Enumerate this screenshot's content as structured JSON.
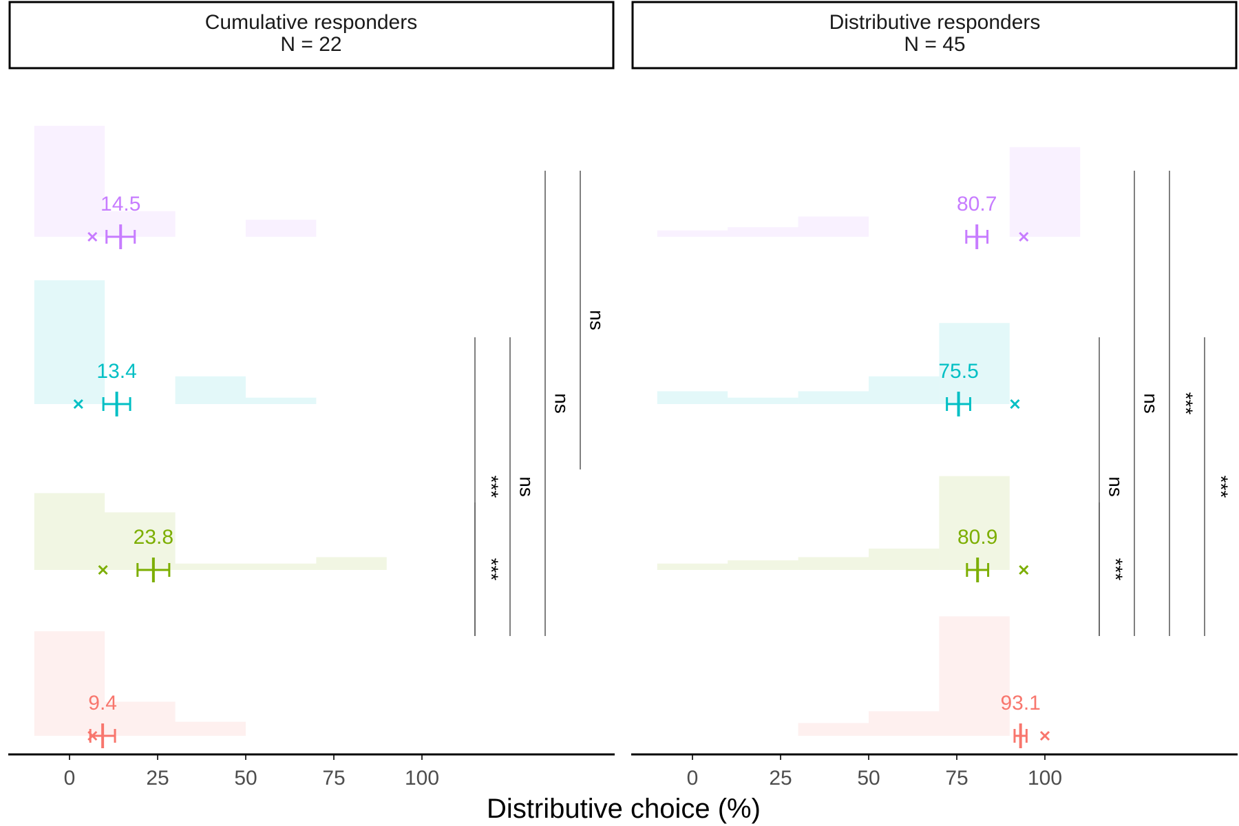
{
  "chart_data": {
    "type": "histogram-with-means",
    "xlabel": "Distributive choice (%)",
    "xticks": [
      "0",
      "25",
      "50",
      "75",
      "100"
    ],
    "xlim": [
      -10.5,
      132
    ],
    "bin_width": 20,
    "bin_centers": [
      0,
      20,
      40,
      60,
      80,
      100
    ],
    "grid": false,
    "conditions": [
      {
        "key": "purple",
        "color": "#C77CFF"
      },
      {
        "key": "cyan",
        "color": "#00BFC4"
      },
      {
        "key": "green",
        "color": "#7CAE00"
      },
      {
        "key": "red",
        "color": "#F8766D"
      }
    ],
    "panels": [
      {
        "strip_line1": "Cumulative responders",
        "strip_line2": "N = 22",
        "groups": [
          {
            "key": "purple",
            "mean_label": "14.5",
            "mean": 14.5,
            "se": 4.0,
            "median": 6.5,
            "bin_heights": [
              0.52,
              0.12,
              0,
              0.08,
              0,
              0
            ]
          },
          {
            "key": "cyan",
            "mean_label": "13.4",
            "mean": 13.4,
            "se": 3.8,
            "median": 2.5,
            "bin_heights": [
              0.58,
              0,
              0.13,
              0.03,
              0,
              0
            ]
          },
          {
            "key": "green",
            "mean_label": "23.8",
            "mean": 23.8,
            "se": 4.5,
            "median": 9.5,
            "bin_heights": [
              0.36,
              0.27,
              0.03,
              0.03,
              0.06,
              0
            ]
          },
          {
            "key": "red",
            "mean_label": "9.4",
            "mean": 9.4,
            "se": 3.5,
            "median": 6.5,
            "bin_heights": [
              0.49,
              0.16,
              0.066,
              0,
              0,
              0
            ]
          }
        ],
        "comparisons": [
          {
            "from": "purple",
            "to": "cyan",
            "label": "ns"
          },
          {
            "from": "purple",
            "to": "red",
            "label": "ns"
          },
          {
            "from": "cyan",
            "to": "red",
            "label": "ns"
          },
          {
            "from": "cyan",
            "to": "green",
            "label": "***"
          },
          {
            "from": "green",
            "to": "red",
            "label": "***"
          }
        ]
      },
      {
        "strip_line1": "Distributive responders",
        "strip_line2": "N = 45",
        "groups": [
          {
            "key": "purple",
            "mean_label": "80.7",
            "mean": 80.7,
            "se": 3.0,
            "median": 94,
            "bin_heights": [
              0.03,
              0.045,
              0.095,
              0,
              0,
              0.42
            ]
          },
          {
            "key": "cyan",
            "mean_label": "75.5",
            "mean": 75.5,
            "se": 3.3,
            "median": 91.5,
            "bin_heights": [
              0.06,
              0.03,
              0.06,
              0.13,
              0.38,
              0
            ]
          },
          {
            "key": "green",
            "mean_label": "80.9",
            "mean": 80.9,
            "se": 3.0,
            "median": 94,
            "bin_heights": [
              0.03,
              0.045,
              0.06,
              0.1,
              0.44,
              0
            ]
          },
          {
            "key": "red",
            "mean_label": "93.1",
            "mean": 93.1,
            "se": 1.7,
            "median": 100,
            "bin_heights": [
              0,
              0,
              0.06,
              0.115,
              0.56,
              0
            ]
          }
        ],
        "comparisons": [
          {
            "from": "purple",
            "to": "green",
            "label": "ns"
          },
          {
            "from": "purple",
            "to": "red",
            "label": "***"
          },
          {
            "from": "cyan",
            "to": "red",
            "label": "***"
          },
          {
            "from": "cyan",
            "to": "green",
            "label": "ns"
          },
          {
            "from": "green",
            "to": "red",
            "label": "***"
          }
        ]
      }
    ]
  }
}
